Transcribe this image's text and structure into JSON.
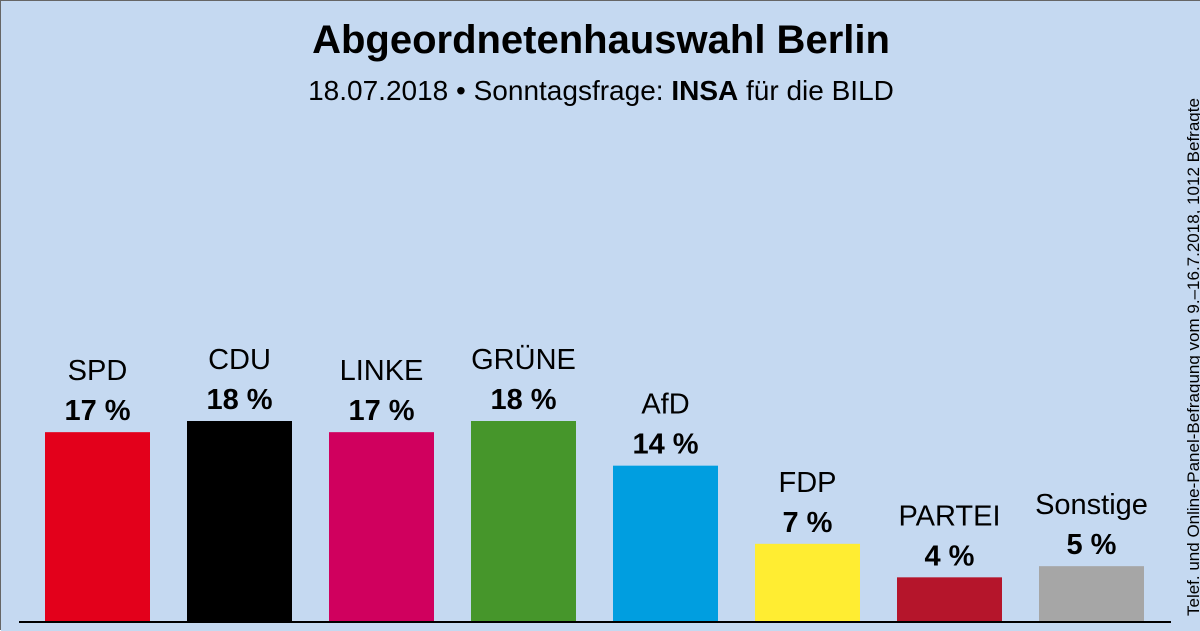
{
  "chart_data": {
    "type": "bar",
    "title": "Abgeordnetenhauswahl Berlin",
    "subtitle": {
      "date": "18.07.2018",
      "separator": "•",
      "prefix": "Sonntagsfrage:",
      "institute": "INSA",
      "suffix": "für die BILD"
    },
    "source_note": "Telef. und Online-Panel-Befragung vom 9.–16.7.2018, 1012 Befragte",
    "categories": [
      "SPD",
      "CDU",
      "LINKE",
      "GRÜNE",
      "AfD",
      "FDP",
      "PARTEI",
      "Sonstige"
    ],
    "values": [
      17,
      18,
      17,
      18,
      14,
      7,
      4,
      5
    ],
    "value_labels": [
      "17 %",
      "18 %",
      "17 %",
      "18 %",
      "14 %",
      "7 %",
      "4 %",
      "5 %"
    ],
    "colors": [
      "#e3001b",
      "#000000",
      "#d0005e",
      "#46962b",
      "#009ee0",
      "#ffed32",
      "#b5152b",
      "#a6a6a6"
    ],
    "xlabel": "",
    "ylabel": "",
    "ylim": [
      0,
      18
    ],
    "grid": false,
    "legend": "none",
    "background_color": "#c5d9f1"
  }
}
